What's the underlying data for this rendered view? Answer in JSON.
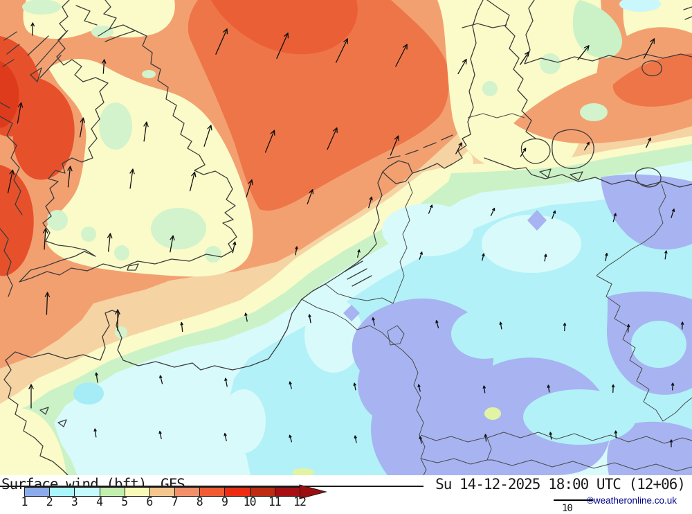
{
  "legend": {
    "title": "Surface wind (bft)",
    "model": "GFS",
    "unit_labels": [
      "1",
      "2",
      "3",
      "4",
      "5",
      "6",
      "7",
      "8",
      "9",
      "10",
      "11",
      "12"
    ],
    "segment_colors": [
      "#8cabea",
      "#aaf6fd",
      "#c6fbfe",
      "#c2efad",
      "#f9f9b8",
      "#f5c78e",
      "#f1906a",
      "#f05c33",
      "#ec2d13",
      "#bd2c13",
      "#a80f12"
    ],
    "arrow_color": "#9c0d10",
    "wind_vector_label": "10"
  },
  "footer": {
    "datetime": "Su 14-12-2025 18:00 UTC (12+06)",
    "copyright": "©weatheronline.co.uk"
  },
  "map": {
    "description": "GFS surface wind (Beaufort) filled contours over the British Isles, North Sea and western/central Europe with wind direction arrows",
    "fill_levels": [
      {
        "bft": "1-2",
        "color": "#a7b4f1"
      },
      {
        "bft": "2-3",
        "color": "#b2f1f8"
      },
      {
        "bft": "3",
        "color": "#d9fafb"
      },
      {
        "bft": "4",
        "color": "#cbf2c6"
      },
      {
        "bft": "5",
        "color": "#fafbc8"
      },
      {
        "bft": "6",
        "color": "#f6d3a2"
      },
      {
        "bft": "7",
        "color": "#f3a071"
      },
      {
        "bft": "8",
        "color": "#ee7547"
      },
      {
        "bft": "9",
        "color": "#e6512c"
      }
    ],
    "arrows": [
      [
        320,
        60,
        24,
        40
      ],
      [
        408,
        66,
        24,
        40
      ],
      [
        494,
        73,
        26,
        38
      ],
      [
        580,
        80,
        27,
        36
      ],
      [
        668,
        96,
        30,
        24
      ],
      [
        758,
        84,
        34,
        22
      ],
      [
        843,
        76,
        38,
        26
      ],
      [
        938,
        70,
        28,
        32
      ],
      [
        150,
        96,
        4,
        20
      ],
      [
        47,
        42,
        2,
        18
      ],
      [
        28,
        163,
        10,
        30
      ],
      [
        118,
        184,
        10,
        28
      ],
      [
        210,
        190,
        8,
        28
      ],
      [
        300,
        196,
        18,
        32
      ],
      [
        390,
        204,
        22,
        34
      ],
      [
        480,
        200,
        24,
        34
      ],
      [
        570,
        210,
        22,
        30
      ],
      [
        663,
        214,
        28,
        18
      ],
      [
        756,
        220,
        32,
        14
      ],
      [
        848,
        211,
        30,
        13
      ],
      [
        937,
        206,
        25,
        15
      ],
      [
        15,
        262,
        12,
        34
      ],
      [
        100,
        255,
        6,
        30
      ],
      [
        190,
        258,
        8,
        28
      ],
      [
        278,
        262,
        14,
        28
      ],
      [
        360,
        272,
        18,
        26
      ],
      [
        448,
        284,
        20,
        22
      ],
      [
        535,
        292,
        16,
        16
      ],
      [
        622,
        302,
        22,
        13
      ],
      [
        712,
        306,
        25,
        12
      ],
      [
        800,
        310,
        22,
        12
      ],
      [
        888,
        314,
        16,
        12
      ],
      [
        972,
        308,
        18,
        13
      ],
      [
        65,
        345,
        4,
        30
      ],
      [
        158,
        350,
        6,
        26
      ],
      [
        248,
        352,
        10,
        24
      ],
      [
        338,
        357,
        12,
        16
      ],
      [
        428,
        362,
        10,
        12
      ],
      [
        518,
        366,
        14,
        11
      ],
      [
        608,
        369,
        18,
        11
      ],
      [
        698,
        371,
        14,
        10
      ],
      [
        788,
        372,
        10,
        10
      ],
      [
        876,
        371,
        10,
        11
      ],
      [
        962,
        368,
        8,
        12
      ],
      [
        68,
        438,
        2,
        32
      ],
      [
        170,
        462,
        0,
        30
      ],
      [
        263,
        472,
        -6,
        13
      ],
      [
        356,
        458,
        -12,
        12
      ],
      [
        448,
        460,
        -10,
        12
      ],
      [
        540,
        464,
        -12,
        11
      ],
      [
        632,
        468,
        -16,
        11
      ],
      [
        724,
        470,
        -10,
        10
      ],
      [
        816,
        472,
        2,
        11
      ],
      [
        908,
        474,
        4,
        11
      ],
      [
        986,
        470,
        3,
        10
      ],
      [
        45,
        572,
        0,
        34
      ],
      [
        140,
        545,
        -8,
        14
      ],
      [
        233,
        548,
        -14,
        12
      ],
      [
        327,
        552,
        -12,
        12
      ],
      [
        420,
        556,
        -14,
        10
      ],
      [
        513,
        558,
        -10,
        10
      ],
      [
        606,
        560,
        -14,
        10
      ],
      [
        700,
        562,
        -8,
        10
      ],
      [
        793,
        561,
        -8,
        10
      ],
      [
        886,
        561,
        2,
        11
      ],
      [
        972,
        558,
        4,
        10
      ],
      [
        138,
        625,
        -8,
        12
      ],
      [
        232,
        628,
        -12,
        11
      ],
      [
        326,
        631,
        -12,
        11
      ],
      [
        420,
        633,
        -16,
        10
      ],
      [
        514,
        634,
        -10,
        10
      ],
      [
        608,
        635,
        -12,
        10
      ],
      [
        702,
        632,
        -6,
        10
      ],
      [
        796,
        629,
        -8,
        10
      ],
      [
        890,
        627,
        -4,
        10
      ],
      [
        970,
        640,
        0,
        10
      ]
    ]
  }
}
